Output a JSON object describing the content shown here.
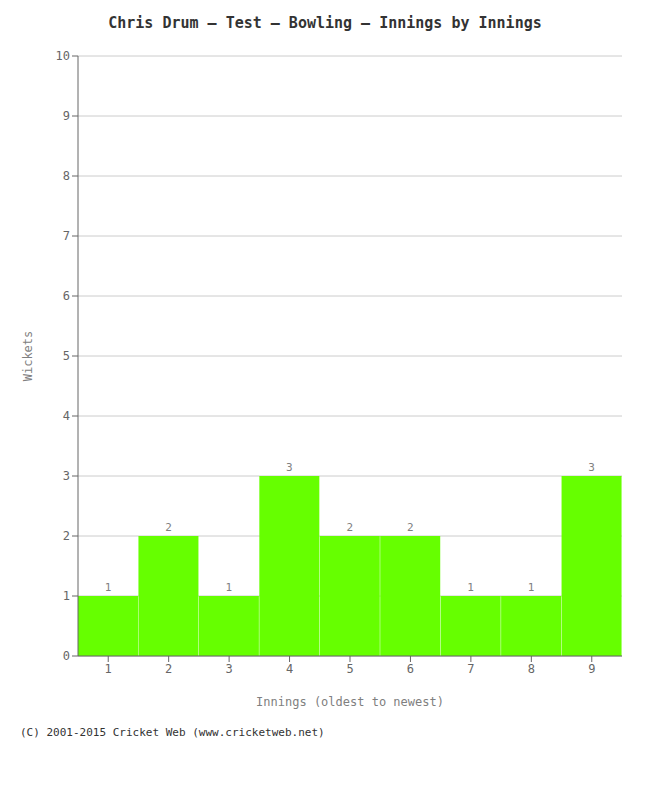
{
  "chart_data": {
    "type": "bar",
    "title": "Chris Drum – Test – Bowling – Innings by Innings",
    "xlabel": "Innings (oldest to newest)",
    "ylabel": "Wickets",
    "categories": [
      1,
      2,
      3,
      4,
      5,
      6,
      7,
      8,
      9
    ],
    "values": [
      1,
      2,
      1,
      3,
      2,
      2,
      1,
      1,
      3
    ],
    "color": "#66ff00",
    "ylim": [
      0,
      10
    ],
    "yticks": [
      0,
      1,
      2,
      3,
      4,
      5,
      6,
      7,
      8,
      9,
      10
    ],
    "grid": true,
    "data_labels": true,
    "annotations": [
      "(C) 2001-2015 Cricket Web (www.cricketweb.net)"
    ]
  }
}
